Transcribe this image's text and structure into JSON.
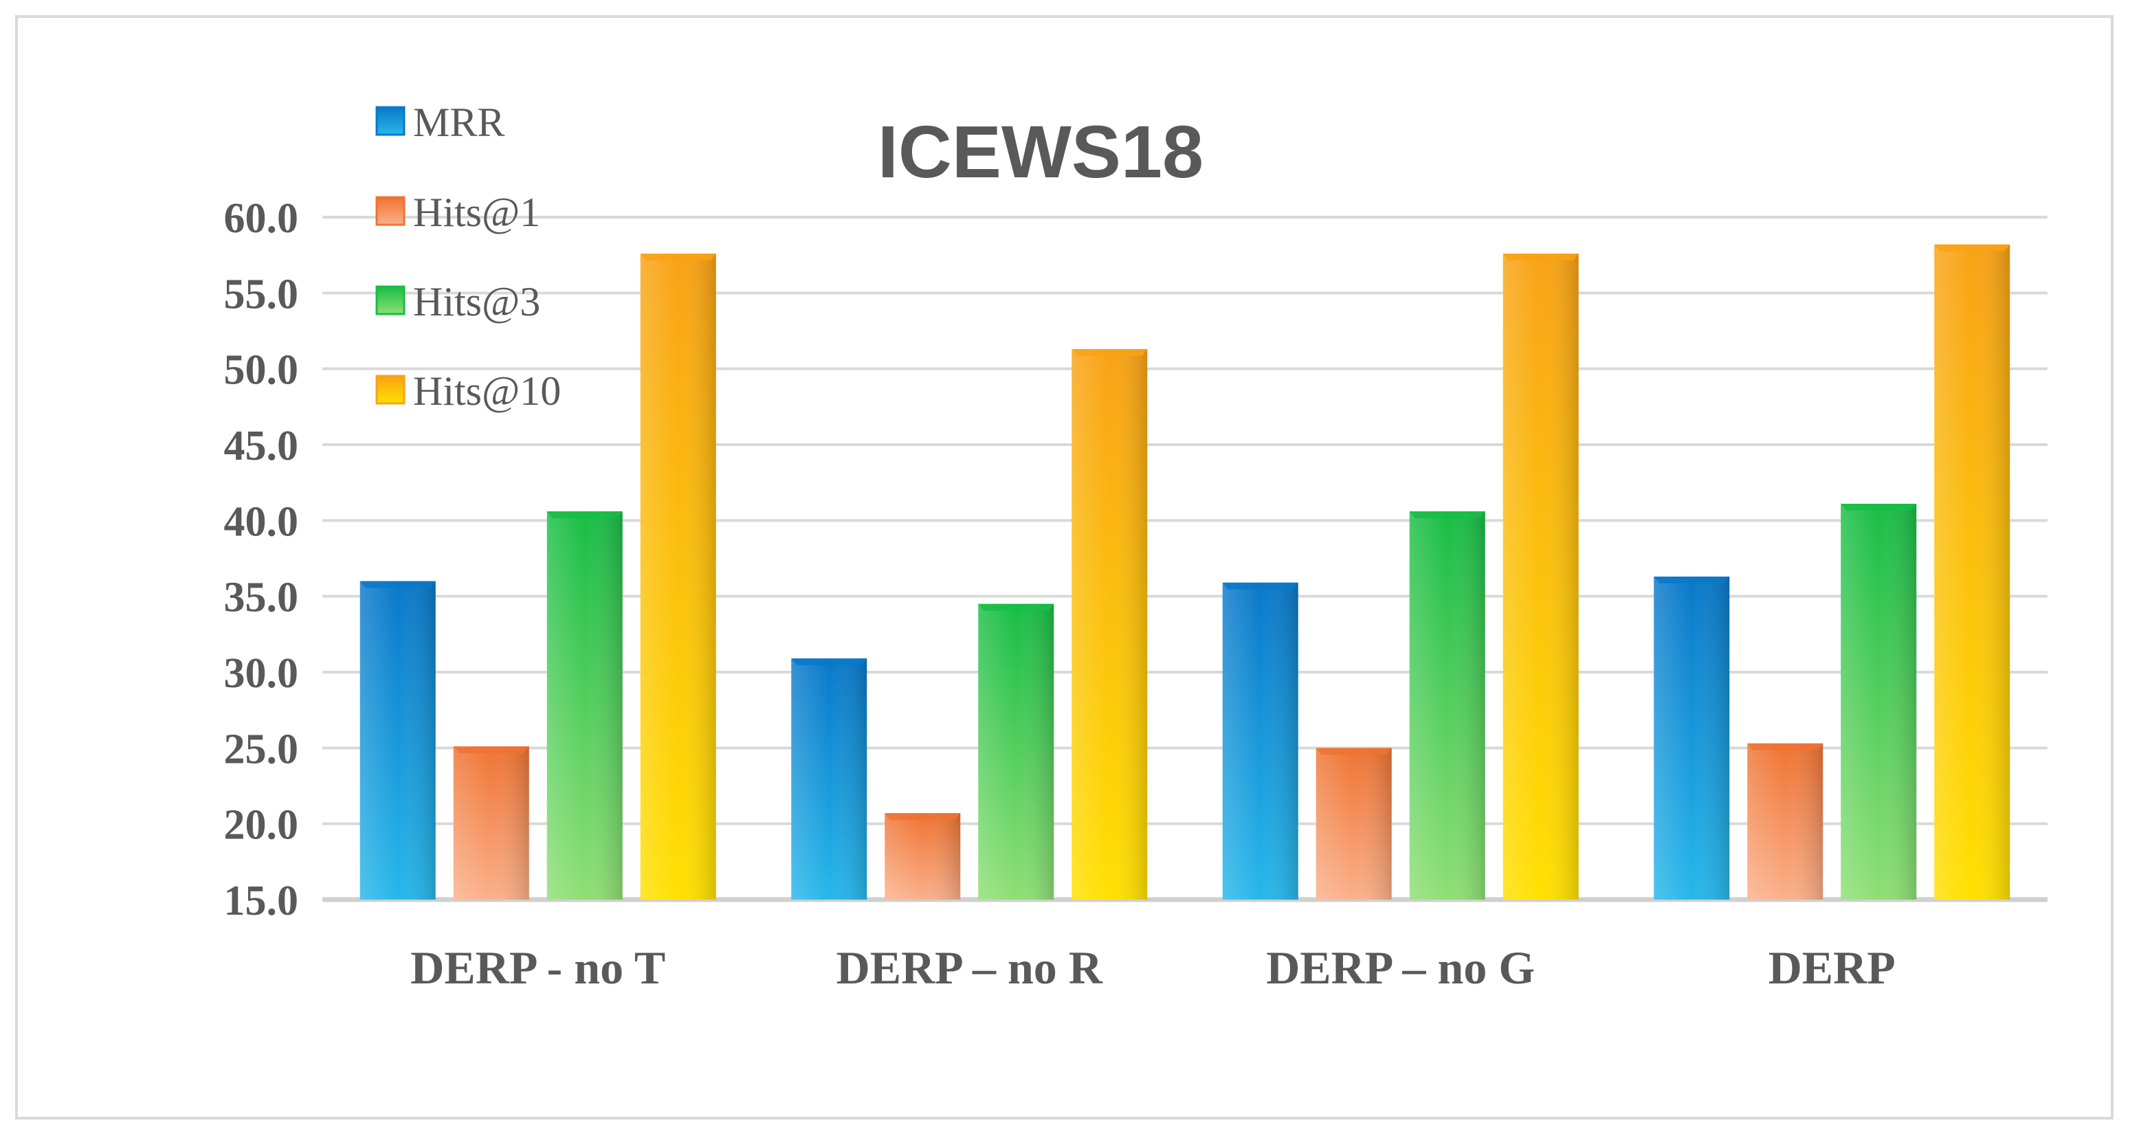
{
  "chart_data": {
    "type": "bar",
    "title": "ICEWS18",
    "categories": [
      "DERP - no T",
      "DERP – no R",
      "DERP – no G",
      "DERP"
    ],
    "series": [
      {
        "name": "MRR",
        "key": "mrr",
        "values": [
          36.0,
          30.9,
          35.9,
          36.3
        ]
      },
      {
        "name": "Hits@1",
        "key": "hits1",
        "values": [
          25.1,
          20.7,
          25.0,
          25.3
        ]
      },
      {
        "name": "Hits@3",
        "key": "hits3",
        "values": [
          40.6,
          34.5,
          40.6,
          41.1
        ]
      },
      {
        "name": "Hits@10",
        "key": "hits10",
        "values": [
          57.6,
          51.3,
          57.6,
          58.2
        ]
      }
    ],
    "yticks": [
      "15.0",
      "20.0",
      "25.0",
      "30.0",
      "35.0",
      "40.0",
      "45.0",
      "50.0",
      "55.0",
      "60.0"
    ],
    "ylim": [
      15,
      60
    ],
    "xlabel": "",
    "ylabel": "",
    "grid": true,
    "legend": "top-left",
    "colors": {
      "mrr": [
        "#27b7ea",
        "#0a78c9"
      ],
      "hits1": [
        "#fbb08a",
        "#ef7332"
      ],
      "hits3": [
        "#8fdf75",
        "#18bd46"
      ],
      "hits10": [
        "#ffe000",
        "#f9a215"
      ]
    }
  }
}
